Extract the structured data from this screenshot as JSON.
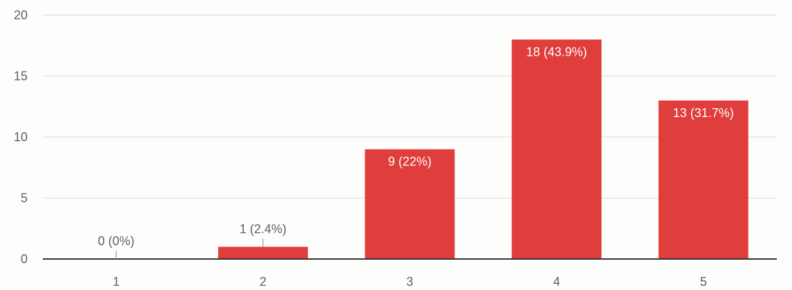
{
  "chart_data": {
    "type": "bar",
    "categories": [
      "1",
      "2",
      "3",
      "4",
      "5"
    ],
    "values": [
      0,
      1,
      9,
      18,
      13
    ],
    "data_labels": [
      "0 (0%)",
      "1 (2.4%)",
      "9 (22%)",
      "18 (43.9%)",
      "13 (31.7%)"
    ],
    "title": "",
    "xlabel": "",
    "ylabel": "",
    "ylim": [
      0,
      20
    ],
    "yticks": [
      "0",
      "5",
      "10",
      "15",
      "20"
    ],
    "grid": true,
    "legend": "none",
    "colors": {
      "bar": "#e03d3d",
      "grid": "#d9d9d9",
      "axis": "#333333",
      "tick_text": "#5f5f5f",
      "label_inside": "#ffffff",
      "label_outside": "#5f5f5f"
    }
  }
}
